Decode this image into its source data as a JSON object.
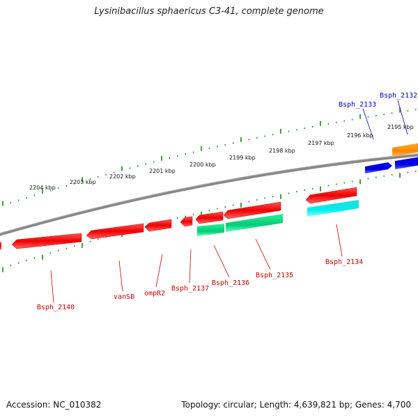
{
  "title": "Lysinibacillus sphaericus C3-41, complete genome",
  "footer": {
    "accession": "Accession: NC_010382",
    "topology": "Topology: circular; Length: 4,639,821 bp; Genes: 4,700"
  },
  "ticks": [
    "2204 kbp",
    "2203 kbp",
    "2202 kbp",
    "2201 kbp",
    "2200 kbp",
    "2199 kbp",
    "2198 kbp",
    "2197 kbp",
    "2196 kbp",
    "2195 kbp"
  ],
  "gene_labels_top": [
    "Bsph_2133",
    "Bsph_2132"
  ],
  "gene_labels_bottom": [
    "Bsph_2140",
    "vanSB",
    "ompR2",
    "Bsph_2137",
    "Bsph_2136",
    "Bsph_2135",
    "Bsph_2134"
  ],
  "colors": {
    "cds": "#ee0000",
    "cds_dark": "#aa0000",
    "misc": "#00dd88",
    "cyan": "#00eeee",
    "blue": "#0000ee",
    "orange": "#ff8800",
    "tick": "#118811",
    "backbone": "#777777",
    "label_red": "#cc0000",
    "label_blue": "#0000cc"
  }
}
